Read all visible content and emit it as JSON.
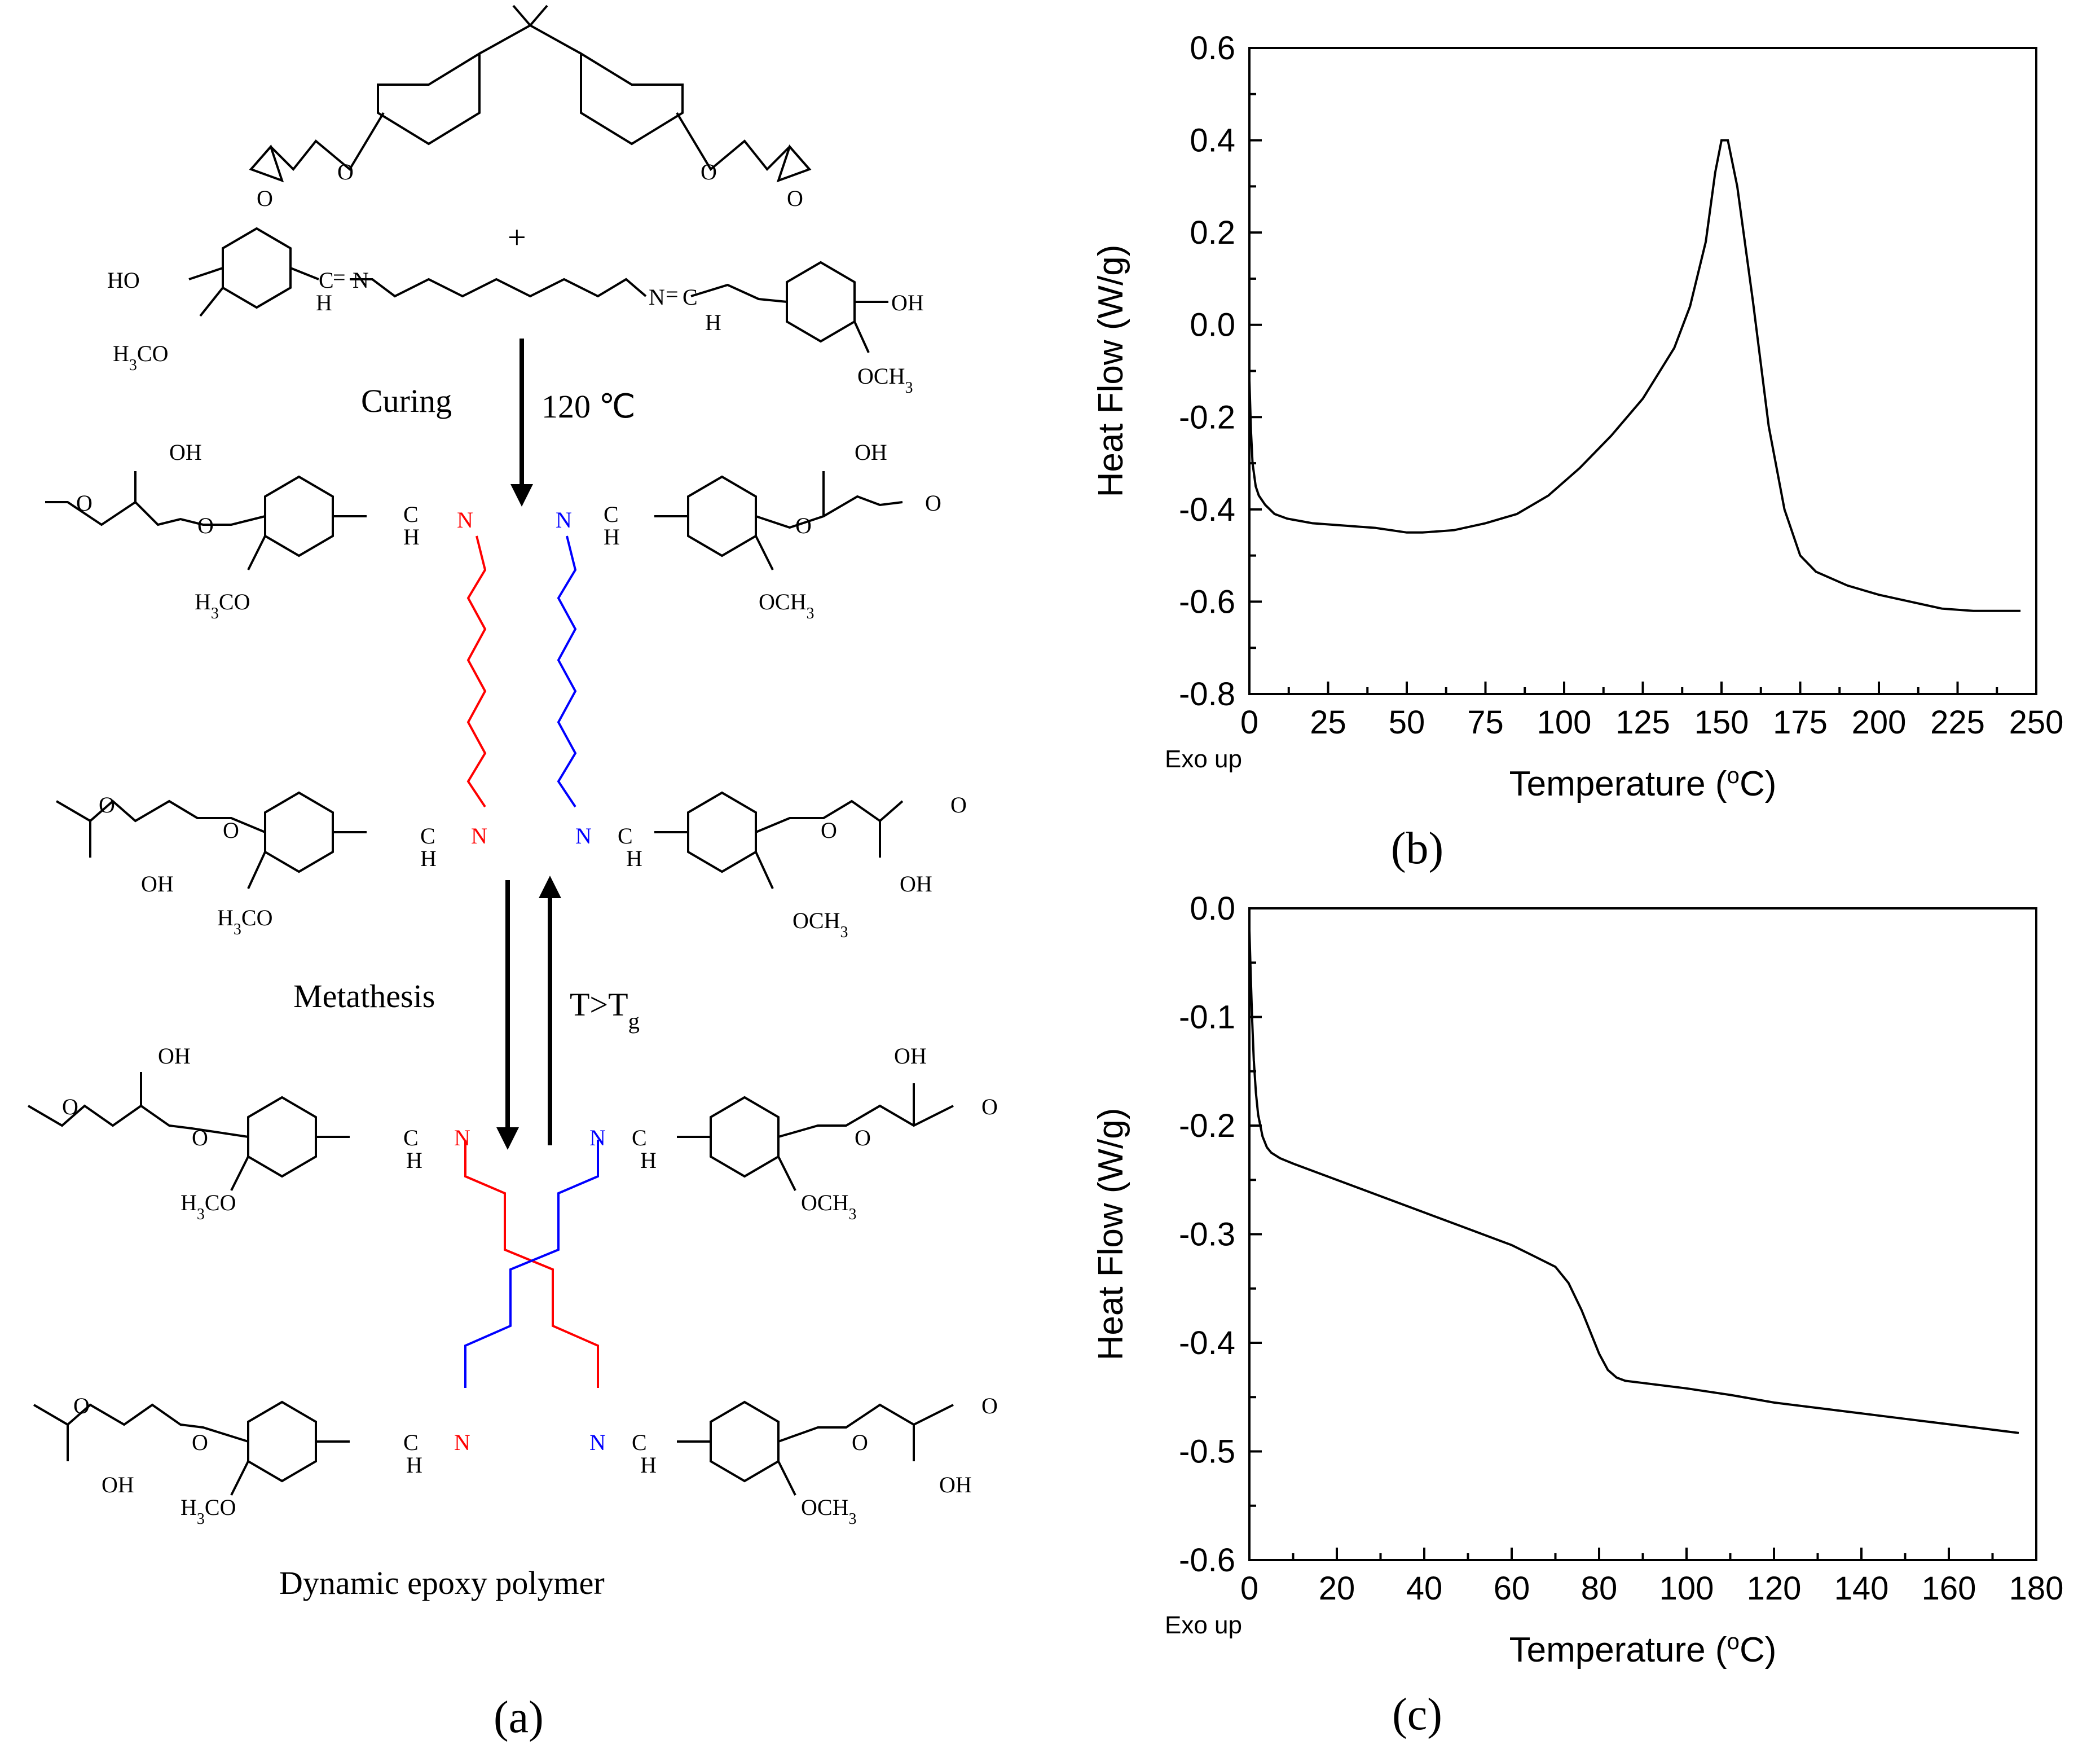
{
  "scheme": {
    "reactant_plus": "+",
    "ho": "HO",
    "oh": "OH",
    "h3co": "H3CO",
    "och3": "OCH3",
    "o": "O",
    "c": "C",
    "h": "H",
    "n": "N",
    "eq": "=",
    "curing_label": "Curing",
    "curing_temp": "120 ℃",
    "metathesis_label": "Metathesis",
    "condition_label": "T>Tg",
    "product_caption": "Dynamic epoxy polymer",
    "panel_label": "(a)",
    "colors": {
      "strand_a": "#ff0000",
      "strand_b": "#0000ff"
    }
  },
  "chart_data": [
    {
      "type": "line",
      "panel_label": "(b)",
      "xlabel": "Temperature (oC)",
      "ylabel": "Heat Flow (W/g)",
      "annotation": "Exo up",
      "xlim": [
        0,
        250
      ],
      "ylim": [
        -0.8,
        0.6
      ],
      "xticks": [
        0,
        25,
        50,
        75,
        100,
        125,
        150,
        175,
        200,
        225,
        250
      ],
      "xtick_labels": [
        "0",
        "25",
        "50",
        "75",
        "100",
        "125",
        "150",
        "175",
        "200",
        "225",
        "250"
      ],
      "yticks": [
        -0.8,
        -0.6,
        -0.4,
        -0.2,
        0.0,
        0.2,
        0.4,
        0.6
      ],
      "ytick_labels": [
        "-0.8",
        "-0.6",
        "-0.4",
        "-0.2",
        "0.0",
        "0.2",
        "0.4",
        "0.6"
      ],
      "grid": false,
      "series": [
        {
          "x": [
            0,
            0.5,
            1,
            2,
            3,
            5,
            8,
            12,
            20,
            30,
            40,
            50,
            55,
            65,
            75,
            85,
            95,
            105,
            115,
            125,
            135,
            140,
            145,
            148,
            150,
            152,
            155,
            160,
            165,
            170,
            175,
            180,
            190,
            200,
            210,
            220,
            230,
            240,
            245
          ],
          "y": [
            -0.12,
            -0.23,
            -0.3,
            -0.35,
            -0.37,
            -0.39,
            -0.41,
            -0.42,
            -0.43,
            -0.435,
            -0.44,
            -0.45,
            -0.45,
            -0.445,
            -0.43,
            -0.41,
            -0.37,
            -0.31,
            -0.24,
            -0.16,
            -0.05,
            0.04,
            0.18,
            0.33,
            0.4,
            0.4,
            0.3,
            0.05,
            -0.22,
            -0.4,
            -0.5,
            -0.535,
            -0.565,
            -0.585,
            -0.6,
            -0.615,
            -0.62,
            -0.62,
            -0.62
          ]
        }
      ]
    },
    {
      "type": "line",
      "panel_label": "(c)",
      "xlabel": "Temperature (oC)",
      "ylabel": "Heat Flow (W/g)",
      "annotation": "Exo up",
      "xlim": [
        0,
        180
      ],
      "ylim": [
        -0.6,
        0.0
      ],
      "xticks": [
        0,
        20,
        40,
        60,
        80,
        100,
        120,
        140,
        160,
        180
      ],
      "xtick_labels": [
        "0",
        "20",
        "40",
        "60",
        "80",
        "100",
        "120",
        "140",
        "160",
        "180"
      ],
      "yticks": [
        -0.6,
        -0.5,
        -0.4,
        -0.3,
        -0.2,
        -0.1,
        0.0
      ],
      "ytick_labels": [
        "-0.6",
        "-0.5",
        "-0.4",
        "-0.3",
        "-0.2",
        "-0.1",
        "0.0"
      ],
      "grid": false,
      "series": [
        {
          "x": [
            0,
            0.3,
            0.6,
            1,
            1.5,
            2,
            3,
            4,
            5,
            7,
            10,
            20,
            30,
            40,
            50,
            60,
            65,
            70,
            73,
            76,
            78,
            80,
            82,
            84,
            86,
            90,
            100,
            110,
            120,
            130,
            140,
            150,
            160,
            170,
            176
          ],
          "y": [
            -0.02,
            -0.06,
            -0.1,
            -0.14,
            -0.17,
            -0.19,
            -0.21,
            -0.22,
            -0.225,
            -0.23,
            -0.235,
            -0.25,
            -0.265,
            -0.28,
            -0.295,
            -0.31,
            -0.32,
            -0.33,
            -0.345,
            -0.37,
            -0.39,
            -0.41,
            -0.425,
            -0.432,
            -0.435,
            -0.437,
            -0.442,
            -0.448,
            -0.455,
            -0.46,
            -0.465,
            -0.47,
            -0.475,
            -0.48,
            -0.483
          ]
        }
      ]
    }
  ]
}
